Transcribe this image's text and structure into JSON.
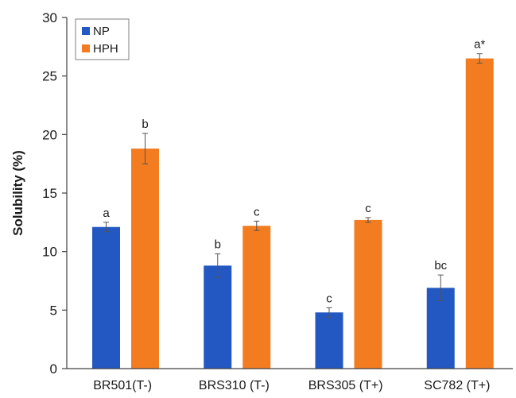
{
  "chart_data": {
    "type": "bar",
    "title": "",
    "xlabel": "",
    "ylabel": "Solubility (%)",
    "ylim": [
      0,
      30
    ],
    "yticks": [
      0,
      5,
      10,
      15,
      20,
      25,
      30
    ],
    "grid": false,
    "legend_position": "top-left",
    "categories": [
      "BR501(T-)",
      "BRS310 (T-)",
      "BRS305 (T+)",
      "SC782 (T+)"
    ],
    "series": [
      {
        "name": "NP",
        "color": "#2357c2",
        "values": [
          12.1,
          8.8,
          4.8,
          6.9
        ],
        "errors": [
          0.4,
          1.0,
          0.4,
          1.1
        ],
        "labels": [
          "a",
          "b",
          "c",
          "bc"
        ]
      },
      {
        "name": "HPH",
        "color": "#f47c20",
        "values": [
          18.8,
          12.2,
          12.7,
          26.5
        ],
        "errors": [
          1.3,
          0.4,
          0.2,
          0.4
        ],
        "labels": [
          "b",
          "c",
          "c",
          "a*"
        ]
      }
    ]
  }
}
